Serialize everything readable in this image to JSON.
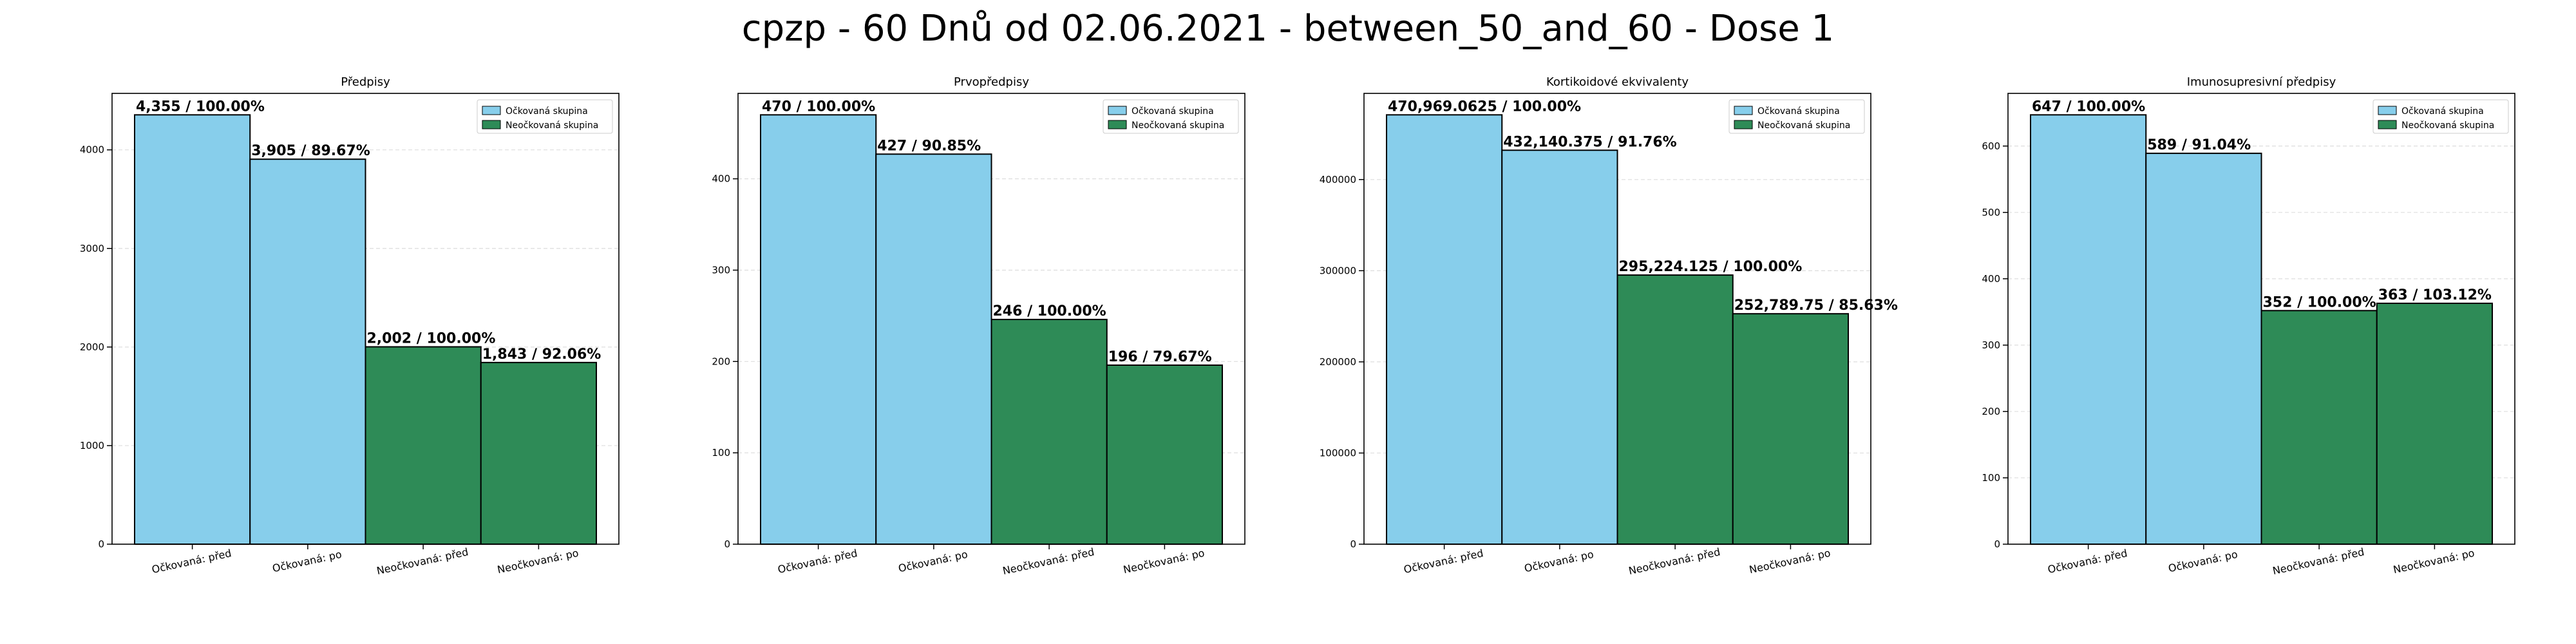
{
  "page": {
    "title": "cpzp - 60 Dnů od 02.06.2021 - between_50_and_60 - Dose 1"
  },
  "colors": {
    "vaccinated": "#87CEEB",
    "unvaccinated": "#2E8B57",
    "edge": "#000000"
  },
  "chart_data": [
    {
      "type": "bar",
      "title": "Předpisy",
      "categories": [
        "Očkovaná: před",
        "Očkovaná: po",
        "Neočkovaná: před",
        "Neočkovaná: po"
      ],
      "values": [
        4355,
        3905,
        2002,
        1843
      ],
      "data_labels": [
        "4,355 / 100.00%",
        "3,905 / 89.67%",
        "2,002 / 100.00%",
        "1,843 / 92.06%"
      ],
      "series_of_bar": [
        "Očkovaná skupina",
        "Očkovaná skupina",
        "Neočkovaná skupina",
        "Neočkovaná skupina"
      ],
      "legend": [
        "Očkovaná skupina",
        "Neočkovaná skupina"
      ],
      "legend_position": "top-right",
      "yticks": [
        "0",
        "1000",
        "2000",
        "3000",
        "4000"
      ],
      "ylim": [
        0,
        4572.75
      ],
      "grid": true
    },
    {
      "type": "bar",
      "title": "Prvopředpisy",
      "categories": [
        "Očkovaná: před",
        "Očkovaná: po",
        "Neočkovaná: před",
        "Neočkovaná: po"
      ],
      "values": [
        470,
        427,
        246,
        196
      ],
      "data_labels": [
        "470 / 100.00%",
        "427 / 90.85%",
        "246 / 100.00%",
        "196 / 79.67%"
      ],
      "series_of_bar": [
        "Očkovaná skupina",
        "Očkovaná skupina",
        "Neočkovaná skupina",
        "Neočkovaná skupina"
      ],
      "legend": [
        "Očkovaná skupina",
        "Neočkovaná skupina"
      ],
      "legend_position": "top-right",
      "yticks": [
        "0",
        "100",
        "200",
        "300",
        "400"
      ],
      "ylim": [
        0,
        493.5
      ],
      "grid": true
    },
    {
      "type": "bar",
      "title": "Kortikoidové ekvivalenty",
      "categories": [
        "Očkovaná: před",
        "Očkovaná: po",
        "Neočkovaná: před",
        "Neočkovaná: po"
      ],
      "values": [
        470969.0625,
        432140.375,
        295224.125,
        252789.75
      ],
      "data_labels": [
        "470,969.0625 / 100.00%",
        "432,140.375 / 91.76%",
        "295,224.125 / 100.00%",
        "252,789.75 / 85.63%"
      ],
      "series_of_bar": [
        "Očkovaná skupina",
        "Očkovaná skupina",
        "Neočkovaná skupina",
        "Neočkovaná skupina"
      ],
      "legend": [
        "Očkovaná skupina",
        "Neočkovaná skupina"
      ],
      "legend_position": "top-right",
      "yticks": [
        "0",
        "100000",
        "200000",
        "300000",
        "400000"
      ],
      "ylim": [
        0,
        494517.5
      ],
      "grid": true
    },
    {
      "type": "bar",
      "title": "Imunosupresivní předpisy",
      "categories": [
        "Očkovaná: před",
        "Očkovaná: po",
        "Neočkovaná: před",
        "Neočkovaná: po"
      ],
      "values": [
        647,
        589,
        352,
        363
      ],
      "data_labels": [
        "647 / 100.00%",
        "589 / 91.04%",
        "352 / 100.00%",
        "363 / 103.12%"
      ],
      "series_of_bar": [
        "Očkovaná skupina",
        "Očkovaná skupina",
        "Neočkovaná skupina",
        "Neočkovaná skupina"
      ],
      "legend": [
        "Očkovaná skupina",
        "Neočkovaná skupina"
      ],
      "legend_position": "top-right",
      "yticks": [
        "0",
        "100",
        "200",
        "300",
        "400",
        "500",
        "600"
      ],
      "ylim": [
        0,
        679.35
      ],
      "grid": true
    }
  ]
}
